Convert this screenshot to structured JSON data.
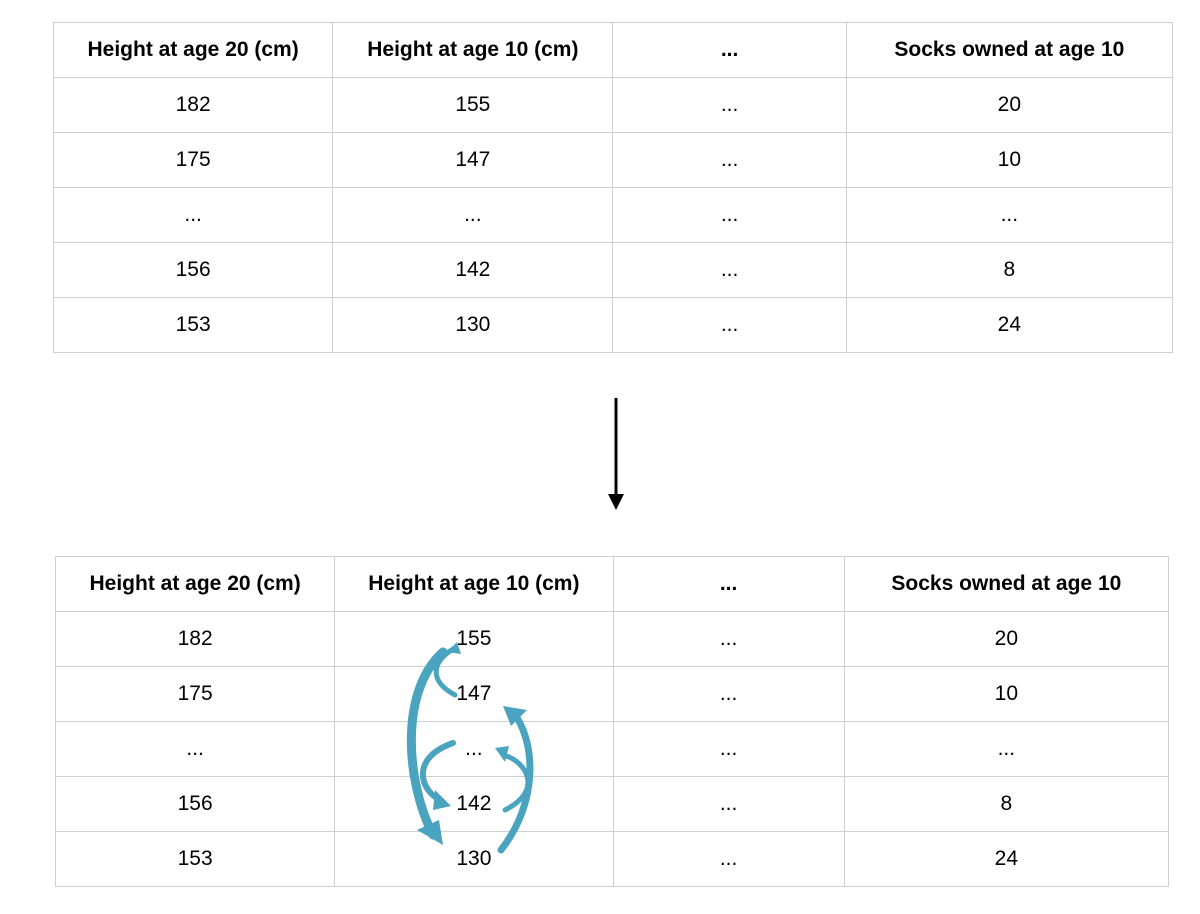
{
  "colors": {
    "swap_arrow": "#4aa3bf",
    "grid": "#cfcfcf"
  },
  "headers": [
    "Height at age 20 (cm)",
    "Height at age 10 (cm)",
    "...",
    "Socks owned at age 10"
  ],
  "top_rows": [
    [
      "182",
      "155",
      "...",
      "20"
    ],
    [
      "175",
      "147",
      "...",
      "10"
    ],
    [
      "...",
      "...",
      "...",
      "..."
    ],
    [
      "156",
      "142",
      "...",
      "8"
    ],
    [
      "153",
      "130",
      "...",
      "24"
    ]
  ],
  "bottom_rows": [
    [
      "182",
      "155",
      "...",
      "20"
    ],
    [
      "175",
      "147",
      "...",
      "10"
    ],
    [
      "...",
      "...",
      "...",
      "..."
    ],
    [
      "156",
      "142",
      "...",
      "8"
    ],
    [
      "153",
      "130",
      "...",
      "24"
    ]
  ]
}
